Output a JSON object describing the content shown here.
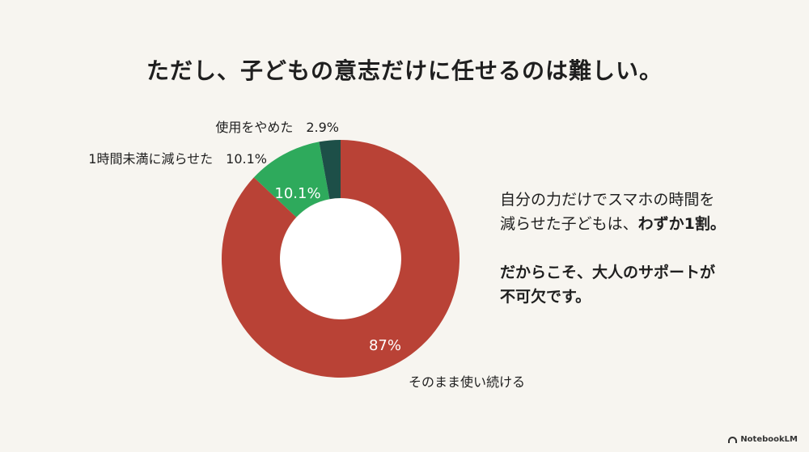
{
  "title": "ただし、子どもの意志だけに任せるのは難しい。",
  "chart_data": {
    "type": "pie",
    "donut": true,
    "slices": [
      {
        "label": "そのまま使い続ける",
        "value": 87,
        "value_label": "87%",
        "color": "#b94236"
      },
      {
        "label": "1時間未満に減らせた",
        "value": 10.1,
        "value_label": "10.1%",
        "outer_label": "1時間未満に減らせた　10.1%",
        "color": "#2eaa5c"
      },
      {
        "label": "使用をやめた",
        "value": 2.9,
        "value_label": "",
        "outer_label": "使用をやめた　2.9%",
        "color": "#1d4f48"
      }
    ]
  },
  "side": {
    "line1": "自分の力だけでスマホの時間を",
    "line2_normal": "減らせた子どもは、",
    "line2_bold": "わずか1割。",
    "line3": "だからこそ、大人のサポートが",
    "line4": "不可欠です。"
  },
  "brand": {
    "name": "NotebookLM"
  }
}
